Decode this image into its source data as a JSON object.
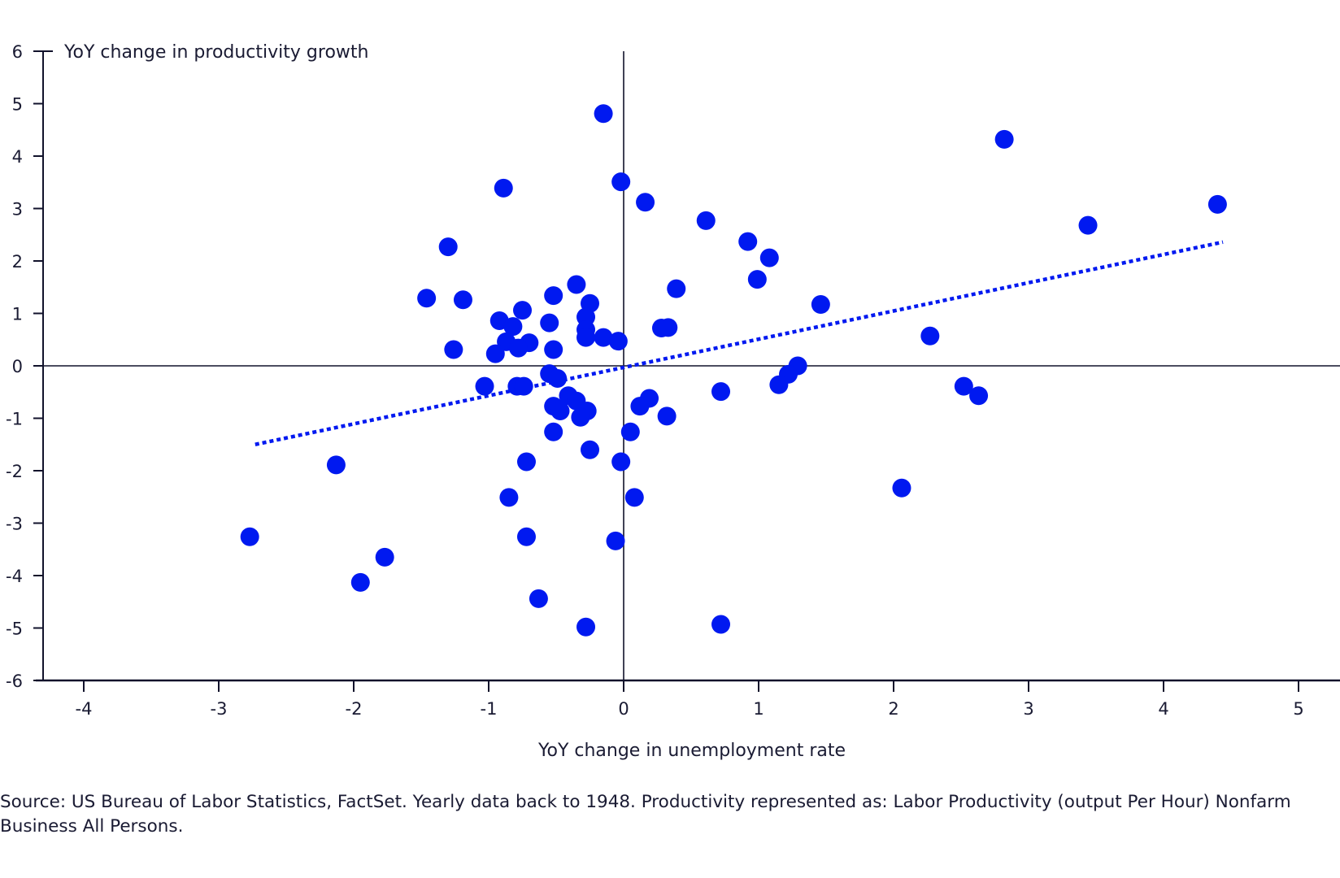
{
  "chart_data": {
    "type": "scatter",
    "title": "",
    "ylabel": "YoY change in productivity growth",
    "xlabel": "YoY change in unemployment rate",
    "xlim": [
      -4.3,
      5.3
    ],
    "ylim": [
      -6,
      6
    ],
    "xticks": [
      -4,
      -3,
      -2,
      -1,
      0,
      1,
      2,
      3,
      4,
      5
    ],
    "yticks": [
      6,
      5,
      4,
      3,
      2,
      1,
      0,
      -1,
      -2,
      -3,
      -4,
      -5,
      -6
    ],
    "grid": false,
    "legend": "none",
    "marker_color": "#0019f0",
    "trendline": {
      "style": "dotted",
      "x": [
        -2.73,
        4.44
      ],
      "y": [
        -1.5,
        2.36
      ]
    },
    "points": [
      {
        "x": -0.15,
        "y": 4.81
      },
      {
        "x": 2.82,
        "y": 4.32
      },
      {
        "x": -0.89,
        "y": 3.39
      },
      {
        "x": -0.02,
        "y": 3.51
      },
      {
        "x": 0.16,
        "y": 3.12
      },
      {
        "x": 4.4,
        "y": 3.08
      },
      {
        "x": 0.61,
        "y": 2.77
      },
      {
        "x": 3.44,
        "y": 2.68
      },
      {
        "x": -1.3,
        "y": 2.27
      },
      {
        "x": 0.92,
        "y": 2.37
      },
      {
        "x": 1.08,
        "y": 2.06
      },
      {
        "x": 0.99,
        "y": 1.65
      },
      {
        "x": -0.35,
        "y": 1.55
      },
      {
        "x": 0.39,
        "y": 1.47
      },
      {
        "x": -1.46,
        "y": 1.29
      },
      {
        "x": -1.19,
        "y": 1.26
      },
      {
        "x": -0.52,
        "y": 1.34
      },
      {
        "x": -0.25,
        "y": 1.19
      },
      {
        "x": 1.46,
        "y": 1.17
      },
      {
        "x": -0.75,
        "y": 1.06
      },
      {
        "x": -0.92,
        "y": 0.86
      },
      {
        "x": -0.28,
        "y": 0.93
      },
      {
        "x": -0.55,
        "y": 0.82
      },
      {
        "x": -0.82,
        "y": 0.75
      },
      {
        "x": 0.28,
        "y": 0.72
      },
      {
        "x": 0.33,
        "y": 0.73
      },
      {
        "x": -0.28,
        "y": 0.69
      },
      {
        "x": -0.28,
        "y": 0.54
      },
      {
        "x": -0.15,
        "y": 0.54
      },
      {
        "x": -0.87,
        "y": 0.46
      },
      {
        "x": -0.7,
        "y": 0.44
      },
      {
        "x": -0.04,
        "y": 0.47
      },
      {
        "x": 2.27,
        "y": 0.57
      },
      {
        "x": -0.78,
        "y": 0.34
      },
      {
        "x": -1.26,
        "y": 0.31
      },
      {
        "x": -0.52,
        "y": 0.31
      },
      {
        "x": -0.95,
        "y": 0.23
      },
      {
        "x": 1.29,
        "y": 0.0
      },
      {
        "x": -0.55,
        "y": -0.15
      },
      {
        "x": 1.22,
        "y": -0.16
      },
      {
        "x": -0.49,
        "y": -0.24
      },
      {
        "x": 1.15,
        "y": -0.36
      },
      {
        "x": -1.03,
        "y": -0.39
      },
      {
        "x": -0.79,
        "y": -0.39
      },
      {
        "x": -0.74,
        "y": -0.39
      },
      {
        "x": 2.52,
        "y": -0.39
      },
      {
        "x": 0.72,
        "y": -0.49
      },
      {
        "x": 2.63,
        "y": -0.57
      },
      {
        "x": -0.41,
        "y": -0.57
      },
      {
        "x": 0.19,
        "y": -0.62
      },
      {
        "x": -0.35,
        "y": -0.67
      },
      {
        "x": 0.12,
        "y": -0.77
      },
      {
        "x": -0.52,
        "y": -0.77
      },
      {
        "x": -0.27,
        "y": -0.86
      },
      {
        "x": -0.47,
        "y": -0.86
      },
      {
        "x": 0.32,
        "y": -0.96
      },
      {
        "x": -0.32,
        "y": -0.98
      },
      {
        "x": 0.05,
        "y": -1.26
      },
      {
        "x": -0.52,
        "y": -1.26
      },
      {
        "x": -0.25,
        "y": -1.6
      },
      {
        "x": -0.72,
        "y": -1.83
      },
      {
        "x": -0.02,
        "y": -1.83
      },
      {
        "x": -2.13,
        "y": -1.89
      },
      {
        "x": 2.06,
        "y": -2.33
      },
      {
        "x": -0.85,
        "y": -2.51
      },
      {
        "x": 0.08,
        "y": -2.51
      },
      {
        "x": -2.77,
        "y": -3.26
      },
      {
        "x": -0.72,
        "y": -3.26
      },
      {
        "x": -0.06,
        "y": -3.34
      },
      {
        "x": -1.77,
        "y": -3.65
      },
      {
        "x": -1.95,
        "y": -4.13
      },
      {
        "x": -0.63,
        "y": -4.44
      },
      {
        "x": 0.72,
        "y": -4.93
      },
      {
        "x": -0.28,
        "y": -4.98
      }
    ]
  },
  "footer": {
    "source": "Source: US Bureau of Labor Statistics, FactSet. Yearly data back to 1948. Productivity represented as: Labor Productivity (output Per Hour) Nonfarm Business All Persons."
  }
}
